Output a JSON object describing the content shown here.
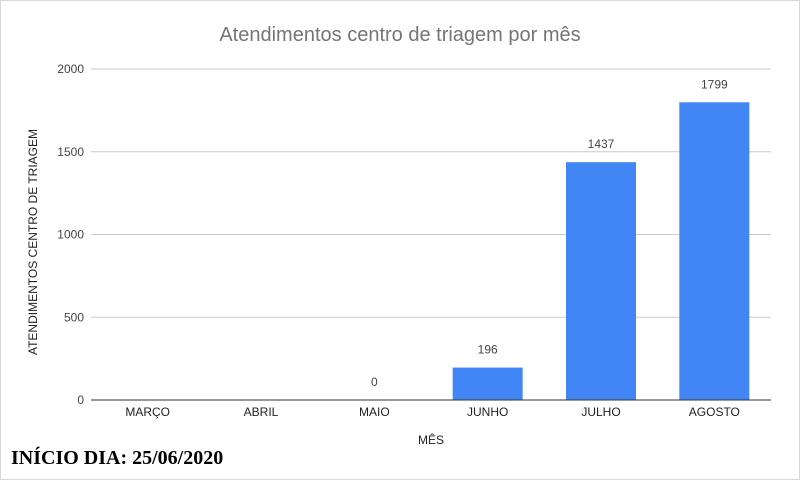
{
  "chart_data": {
    "type": "bar",
    "title": "Atendimentos centro de triagem por mês",
    "xlabel": "MÊS",
    "ylabel": "ATENDIMENTOS CENTRO DE TRIAGEM",
    "categories": [
      "MARÇO",
      "ABRIL",
      "MAIO",
      "JUNHO",
      "JULHO",
      "AGOSTO"
    ],
    "values": [
      null,
      null,
      0,
      196,
      1437,
      1799
    ],
    "data_labels": [
      "",
      "",
      "0",
      "196",
      "1437",
      "1799"
    ],
    "ylim": [
      0,
      2000
    ],
    "yticks": [
      "0",
      "500",
      "1000",
      "1500",
      "2000"
    ],
    "bar_color": "#4285f4",
    "grid": true,
    "legend": "none"
  },
  "footnote": "INÍCIO DIA: 25/06/2020"
}
